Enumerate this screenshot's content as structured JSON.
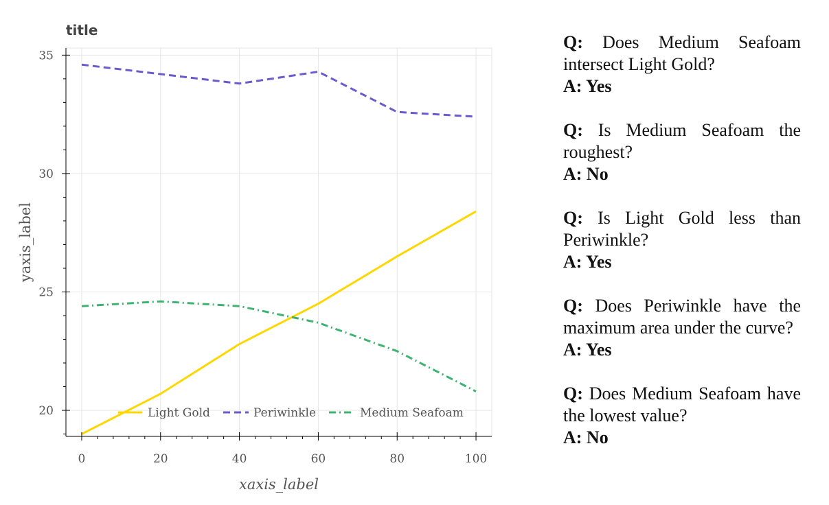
{
  "chart_data": {
    "type": "line",
    "title": "title",
    "xlabel": "xaxis_label",
    "ylabel": "yaxis_label",
    "xlim": [
      -4,
      104
    ],
    "ylim": [
      18.9,
      35.3
    ],
    "x_ticks": [
      0,
      20,
      40,
      60,
      80,
      100
    ],
    "y_ticks": [
      20,
      25,
      30,
      35
    ],
    "grid": true,
    "legend_position": "bottom",
    "series": [
      {
        "name": "Light Gold",
        "color": "#FFD700",
        "style": "solid",
        "x": [
          0,
          20,
          40,
          60,
          80,
          100
        ],
        "y": [
          19.0,
          20.7,
          22.8,
          24.5,
          26.5,
          28.4
        ]
      },
      {
        "name": "Periwinkle",
        "color": "#6A5ACD",
        "style": "dashed",
        "x": [
          0,
          20,
          40,
          60,
          80,
          100
        ],
        "y": [
          34.6,
          34.2,
          33.8,
          34.3,
          32.6,
          32.4
        ]
      },
      {
        "name": "Medium Seafoam",
        "color": "#3CB371",
        "style": "dashdot",
        "x": [
          0,
          20,
          40,
          60,
          80,
          100
        ],
        "y": [
          24.4,
          24.6,
          24.4,
          23.7,
          22.5,
          20.8
        ]
      }
    ]
  },
  "qa": [
    {
      "q_prefix": "Q:",
      "question": "Does Medium Seafoam intersect Light Gold?",
      "answer": "A: Yes"
    },
    {
      "q_prefix": "Q:",
      "question": "Is Medium Seafoam the roughest?",
      "answer": "A: No"
    },
    {
      "q_prefix": "Q:",
      "question": "Is Light Gold less than Periwinkle?",
      "answer": "A: Yes"
    },
    {
      "q_prefix": "Q:",
      "question": "Does Periwinkle have the maximum area under the curve?",
      "answer": "A: Yes"
    },
    {
      "q_prefix": "Q:",
      "question": "Does Medium Seafoam have the lowest value?",
      "answer": "A: No"
    }
  ]
}
